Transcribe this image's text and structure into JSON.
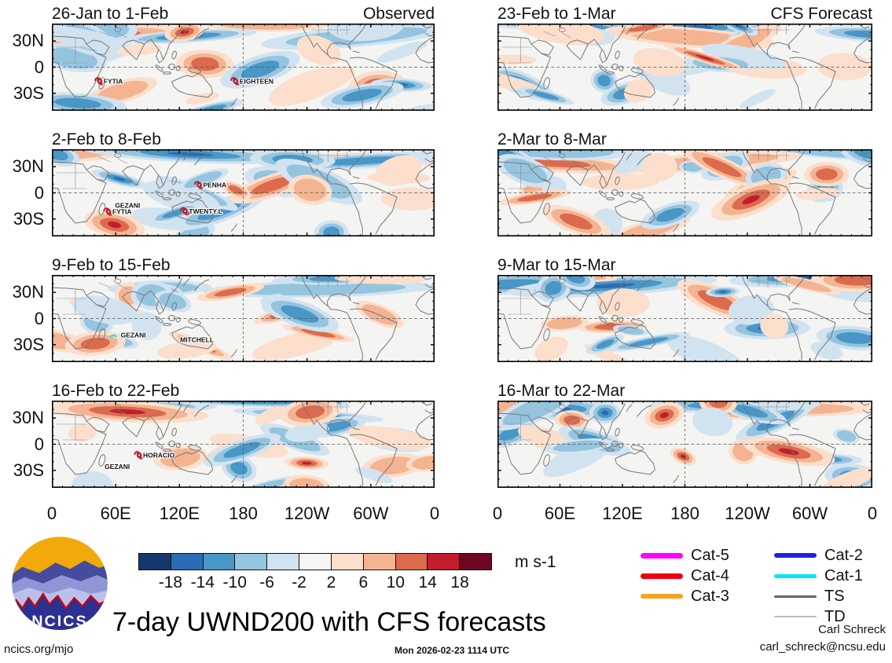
{
  "figure": {
    "title": "7-day UWND200 with CFS forecasts",
    "site": "ncics.org/mjo",
    "timestamp": "Mon 2026-02-23 1114 UTC",
    "credit_name": "Carl Schreck",
    "credit_email": "carl_schreck@ncsu.edu",
    "units_label": "m s-1",
    "logo_text": "NCICS"
  },
  "panels": [
    {
      "title": "26-Jan to 1-Feb",
      "corner": "Observed",
      "storms": [
        {
          "name": "FYTIA",
          "fx": 0.125,
          "fy": 0.66,
          "icon": true
        },
        {
          "name": "EIGHTEEN",
          "fx": 0.48,
          "fy": 0.66,
          "icon": true
        }
      ]
    },
    {
      "title": "23-Feb to 1-Mar",
      "corner": "CFS Forecast",
      "storms": []
    },
    {
      "title": "2-Feb to 8-Feb",
      "corner": "",
      "storms": [
        {
          "name": "GEZANI",
          "fx": 0.165,
          "fy": 0.645,
          "icon": false
        },
        {
          "name": "FYTIA",
          "fx": 0.148,
          "fy": 0.715,
          "icon": true
        },
        {
          "name": "PENHA",
          "fx": 0.385,
          "fy": 0.41,
          "icon": true
        },
        {
          "name": "TWENTY.L",
          "fx": 0.348,
          "fy": 0.71,
          "icon": true
        }
      ]
    },
    {
      "title": "2-Mar to 8-Mar",
      "corner": "",
      "storms": []
    },
    {
      "title": "9-Feb to 15-Feb",
      "corner": "",
      "storms": [
        {
          "name": "GEZANI",
          "fx": 0.18,
          "fy": 0.69,
          "icon": false,
          "track": true
        },
        {
          "name": "MITCHELL",
          "fx": 0.335,
          "fy": 0.745,
          "icon": false
        }
      ]
    },
    {
      "title": "9-Mar to 15-Mar",
      "corner": "",
      "storms": []
    },
    {
      "title": "16-Feb to 22-Feb",
      "corner": "",
      "storms": [
        {
          "name": "HORACIO",
          "fx": 0.228,
          "fy": 0.625,
          "icon": true
        },
        {
          "name": "GEZANI",
          "fx": 0.138,
          "fy": 0.755,
          "icon": false
        }
      ]
    },
    {
      "title": "16-Mar to 22-Mar",
      "corner": "",
      "storms": []
    }
  ],
  "axes": {
    "lat_labels": [
      "30N",
      "0",
      "30S"
    ],
    "lon_labels": [
      "0",
      "60E",
      "120E",
      "180",
      "120W",
      "60W",
      "0"
    ]
  },
  "colorbar": {
    "values": [
      "-18",
      "-14",
      "-10",
      "-6",
      "-2",
      "2",
      "6",
      "10",
      "14",
      "18"
    ],
    "colors": [
      "#14386e",
      "#2b6cb3",
      "#4897c6",
      "#95c4df",
      "#d2e3f0",
      "#f5f5f3",
      "#fbdfcc",
      "#f4b491",
      "#dc6a4d",
      "#c01e2e",
      "#6d0721"
    ]
  },
  "legend": {
    "col1": [
      {
        "label": "Cat-5",
        "color": "#ff00ff",
        "weight": 7
      },
      {
        "label": "Cat-4",
        "color": "#ee0011",
        "weight": 7
      },
      {
        "label": "Cat-3",
        "color": "#f5a51d",
        "weight": 6
      }
    ],
    "col2": [
      {
        "label": "Cat-2",
        "color": "#2222dd",
        "weight": 6
      },
      {
        "label": "Cat-1",
        "color": "#00e5ff",
        "weight": 5
      },
      {
        "label": "TS",
        "color": "#666666",
        "weight": 3
      },
      {
        "label": "TD",
        "color": "#bbbbbb",
        "weight": 2
      }
    ]
  },
  "chart_data": {
    "type": "heatmap",
    "subtype": "filled-contour longitude-latitude anomaly maps, 4x2 grid",
    "variable": "UWND200 (200-hPa zonal wind), 7-day means",
    "units": "m s-1",
    "contour_levels": [
      -18,
      -14,
      -10,
      -6,
      -2,
      2,
      6,
      10,
      14,
      18
    ],
    "colormap": "blue (negative / easterly) to red (positive / westerly)",
    "x_ticks": [
      "0",
      "60E",
      "120E",
      "180",
      "120W",
      "60W",
      "0"
    ],
    "y_ticks": [
      "30N",
      "0",
      "30S"
    ],
    "panels": [
      {
        "row": 1,
        "col": "left",
        "title": "26-Jan to 1-Feb",
        "source": "Observed",
        "storm_labels": [
          "FYTIA",
          "EIGHTEEN"
        ]
      },
      {
        "row": 1,
        "col": "right",
        "title": "23-Feb to 1-Mar",
        "source": "CFS Forecast",
        "storm_labels": []
      },
      {
        "row": 2,
        "col": "left",
        "title": "2-Feb to 8-Feb",
        "source": "Observed",
        "storm_labels": [
          "GEZANI",
          "FYTIA",
          "PENHA",
          "TWENTY.L"
        ]
      },
      {
        "row": 2,
        "col": "right",
        "title": "2-Mar to 8-Mar",
        "source": "CFS Forecast",
        "storm_labels": []
      },
      {
        "row": 3,
        "col": "left",
        "title": "9-Feb to 15-Feb",
        "source": "Observed",
        "storm_labels": [
          "GEZANI",
          "MITCHELL"
        ]
      },
      {
        "row": 3,
        "col": "right",
        "title": "9-Mar to 15-Mar",
        "source": "CFS Forecast",
        "storm_labels": []
      },
      {
        "row": 4,
        "col": "left",
        "title": "16-Feb to 22-Feb",
        "source": "Observed",
        "storm_labels": [
          "HORACIO",
          "GEZANI"
        ]
      },
      {
        "row": 4,
        "col": "right",
        "title": "16-Mar to 22-Mar",
        "source": "CFS Forecast",
        "storm_labels": []
      }
    ],
    "legend_entries": [
      "Cat-5",
      "Cat-4",
      "Cat-3",
      "Cat-2",
      "Cat-1",
      "TS",
      "TD"
    ],
    "legend_position": "bottom-right"
  }
}
